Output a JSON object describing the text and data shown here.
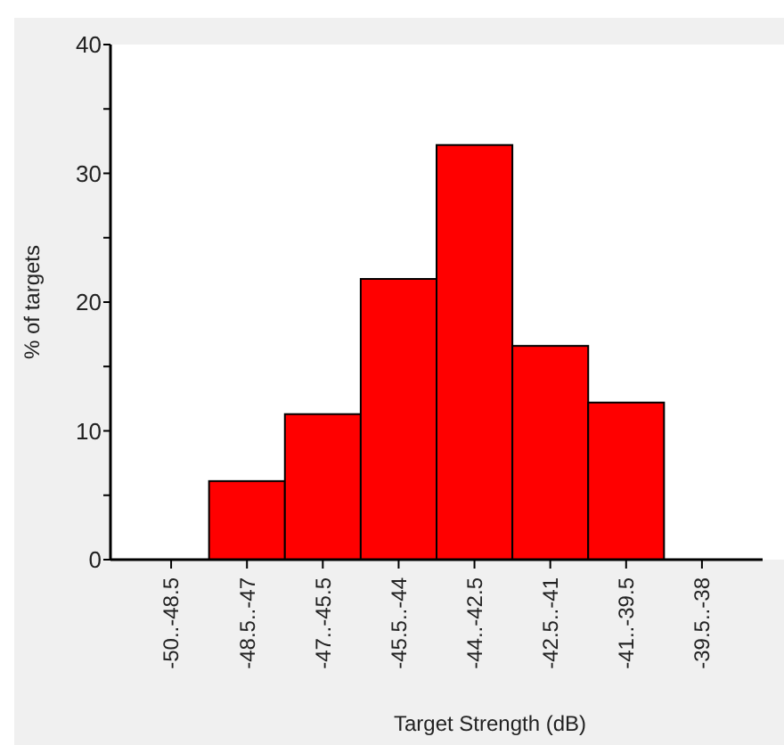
{
  "chart_data": {
    "type": "bar",
    "xlabel": "Target Strength (dB)",
    "ylabel": "% of targets",
    "categories": [
      "-50..-48.5",
      "-48.5..-47",
      "-47..-45.5",
      "-45.5..-44",
      "-44..-42.5",
      "-42.5..-41",
      "-41..-39.5",
      "-39.5..-38"
    ],
    "values": [
      0,
      6.1,
      11.3,
      21.8,
      32.2,
      16.6,
      12.2,
      0
    ],
    "color": "#ff0000",
    "ylim": [
      0,
      40
    ],
    "yticks": [
      0,
      {
        "value": 5,
        "label": null
      },
      10,
      {
        "value": 15,
        "label": null
      },
      20,
      {
        "value": 25,
        "label": null
      },
      30,
      {
        "value": 35,
        "label": null
      },
      40
    ],
    "grid": false
  }
}
